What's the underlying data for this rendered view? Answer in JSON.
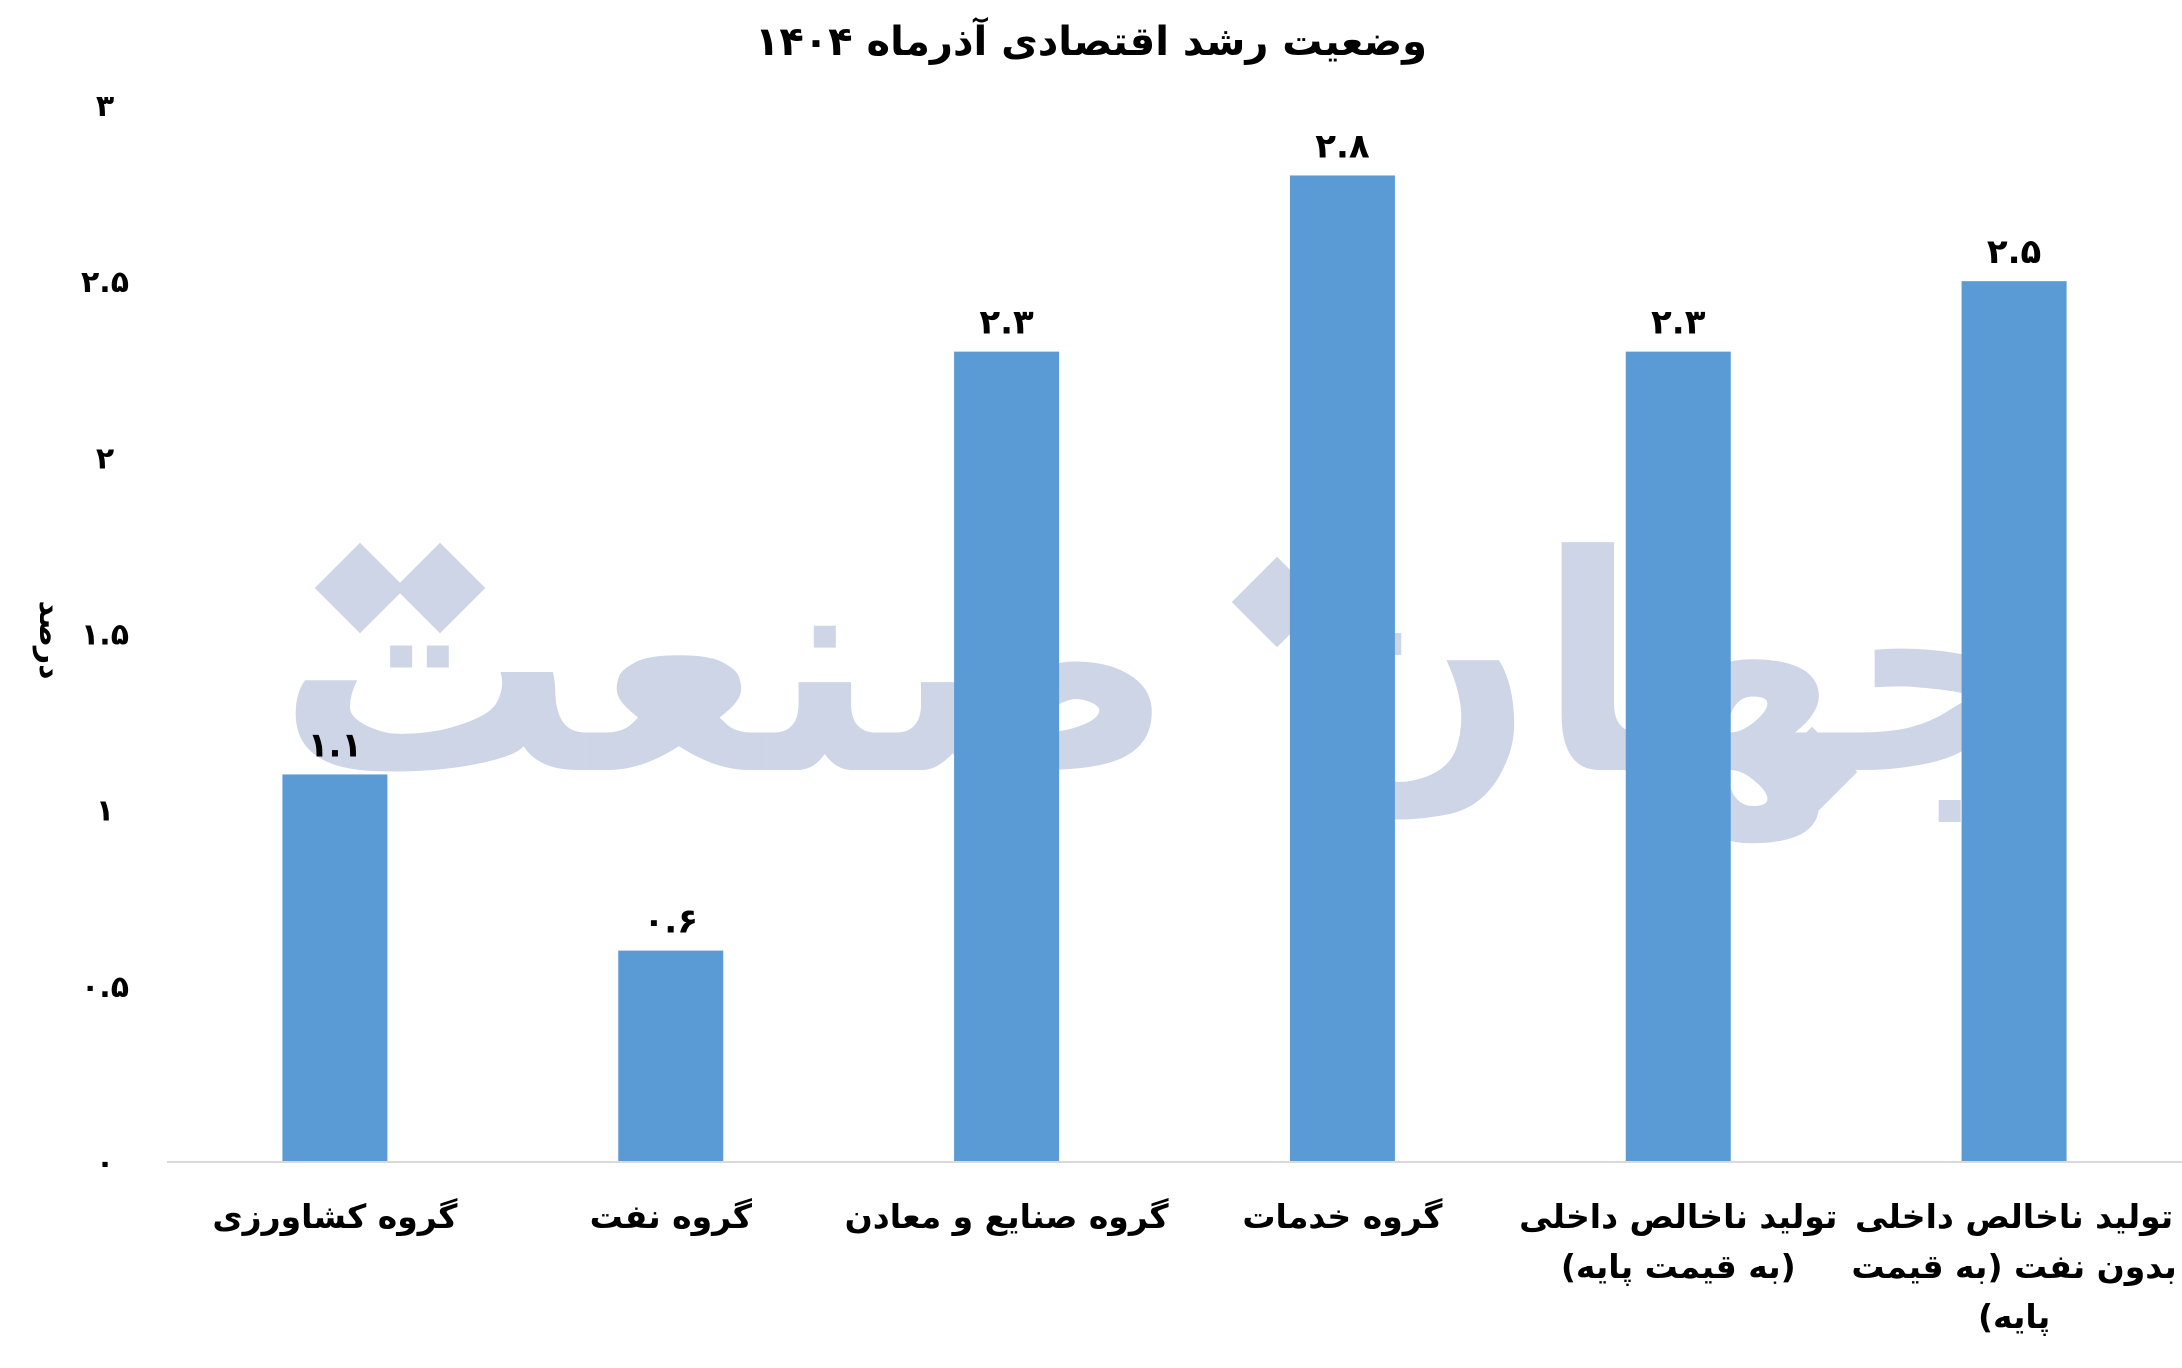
{
  "chart_data": {
    "type": "bar",
    "title": "وضعیت رشد اقتصادی آذرماه ۱۴۰۴",
    "ylabel": "درصد",
    "xlabel": "",
    "ylim": [
      0,
      3
    ],
    "yticks": [
      0,
      0.5,
      1,
      1.5,
      2,
      2.5,
      3
    ],
    "ytick_labels": [
      "۰",
      "۰.۵",
      "۱",
      "۱.۵",
      "۲",
      "۲.۵",
      "۳"
    ],
    "categories": [
      "گروه کشاورزی",
      "گروه نفت",
      "گروه صنایع و معادن",
      "گروه خدمات",
      "تولید ناخالص داخلی (به قیمت پایه)",
      "تولید ناخالص داخلی بدون نفت (به قیمت پایه)"
    ],
    "category_lines": [
      [
        "گروه کشاورزی"
      ],
      [
        "گروه نفت"
      ],
      [
        "گروه صنایع و معادن"
      ],
      [
        "گروه خدمات"
      ],
      [
        "تولید ناخالص داخلی",
        "(به قیمت پایه)"
      ],
      [
        "تولید ناخالص داخلی",
        "بدون نفت (به قیمت",
        "پایه)"
      ]
    ],
    "values": [
      1.1,
      0.6,
      2.3,
      2.8,
      2.3,
      2.5
    ],
    "value_labels": [
      "۱.۱",
      "۰.۶",
      "۲.۳",
      "۲.۸",
      "۲.۳",
      "۲.۵"
    ],
    "bar_color": "#5B9BD5",
    "axis_color": "#D9D9D9",
    "grid": false,
    "legend": "none"
  },
  "watermark": {
    "text": "جهان صنعت",
    "color": "#CDD5E6"
  }
}
